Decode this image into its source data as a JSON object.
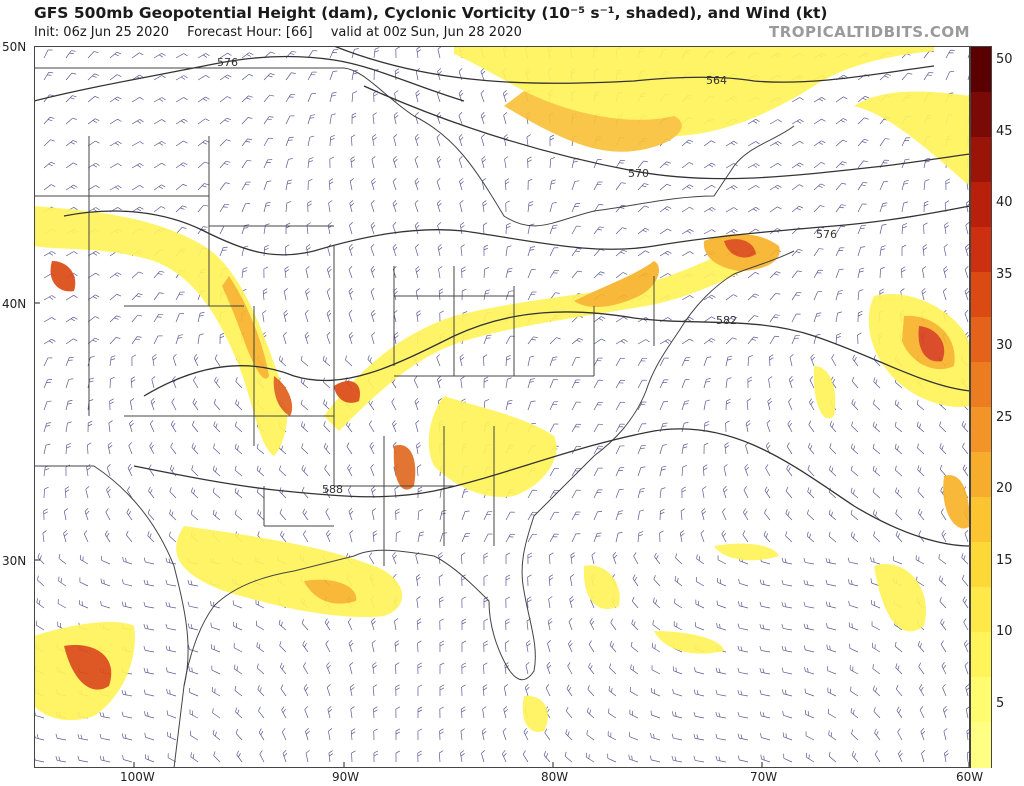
{
  "header": {
    "title": "GFS 500mb Geopotential Height (dam), Cyclonic Vorticity (10⁻⁵ s⁻¹, shaded), and Wind (kt)",
    "init": "Init: 06z Jun 25 2020",
    "forecast_hour": "Forecast Hour: [66]",
    "valid": "valid at 00z Sun, Jun 28 2020",
    "brand": "TROPICALTIDBITS.COM"
  },
  "lat_labels": [
    "50N",
    "40N",
    "30N"
  ],
  "lon_labels": [
    "100W",
    "90W",
    "80W",
    "70W",
    "60W"
  ],
  "contour_labels": [
    "576",
    "564",
    "570",
    "576",
    "582",
    "588"
  ],
  "colorbar": {
    "ticks": [
      "50",
      "45",
      "40",
      "35",
      "30",
      "25",
      "20",
      "15",
      "10",
      "5"
    ],
    "colors": [
      "#5a0000",
      "#7a0a05",
      "#9b1408",
      "#b8200c",
      "#cc3010",
      "#dc4a14",
      "#e4621a",
      "#ec7c20",
      "#f29428",
      "#f7ad2c",
      "#fbc430",
      "#fdd938",
      "#fee948",
      "#fff45a",
      "#fffc70",
      "#ffff84"
    ]
  },
  "colors": {
    "vorticity_low": "#fff35a",
    "vorticity_mid": "#f8b22a",
    "vorticity_high": "#d8401a",
    "contour": "#333333",
    "wind_barb": "#5a5a96",
    "boundary": "#444444"
  }
}
